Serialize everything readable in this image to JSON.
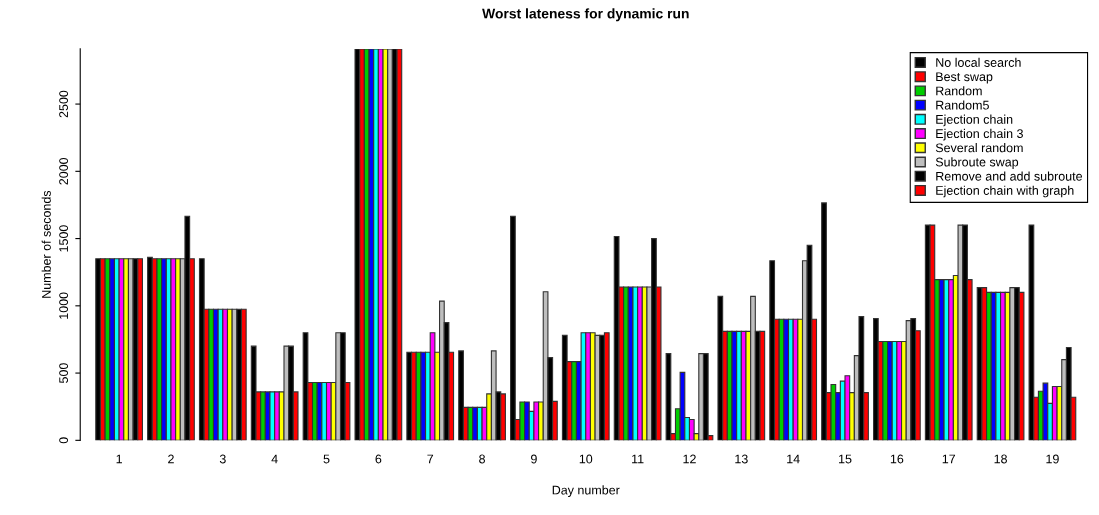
{
  "chart_data": {
    "type": "bar",
    "title": "Worst lateness for dynamic run",
    "xlabel": "Day number",
    "ylabel": "Number of seconds",
    "categories": [
      "1",
      "2",
      "3",
      "4",
      "5",
      "6",
      "7",
      "8",
      "9",
      "10",
      "11",
      "12",
      "13",
      "14",
      "15",
      "16",
      "17",
      "18",
      "19"
    ],
    "series": [
      {
        "name": "No local search",
        "color": "#000000",
        "values": [
          1350,
          1360,
          1350,
          700,
          800,
          2910,
          655,
          665,
          1665,
          780,
          1515,
          645,
          1070,
          1335,
          1765,
          905,
          1600,
          1135,
          1600
        ]
      },
      {
        "name": "Best swap",
        "color": "#ff0000",
        "values": [
          1350,
          1350,
          975,
          360,
          430,
          2910,
          655,
          245,
          155,
          585,
          1140,
          50,
          810,
          900,
          355,
          735,
          1600,
          1135,
          320
        ]
      },
      {
        "name": "Random",
        "color": "#00cd00",
        "values": [
          1350,
          1350,
          975,
          360,
          430,
          2910,
          655,
          245,
          285,
          585,
          1140,
          235,
          810,
          900,
          415,
          735,
          1195,
          1100,
          365
        ]
      },
      {
        "name": "Random5",
        "color": "#0000ff",
        "values": [
          1350,
          1350,
          975,
          360,
          430,
          2910,
          655,
          245,
          285,
          585,
          1140,
          505,
          810,
          900,
          355,
          735,
          1195,
          1100,
          425
        ]
      },
      {
        "name": "Ejection chain",
        "color": "#00ffff",
        "values": [
          1350,
          1350,
          975,
          360,
          430,
          2910,
          655,
          245,
          215,
          800,
          1140,
          170,
          810,
          900,
          440,
          735,
          1195,
          1100,
          275
        ]
      },
      {
        "name": "Ejection chain 3",
        "color": "#ff00ff",
        "values": [
          1350,
          1350,
          975,
          360,
          430,
          2910,
          800,
          245,
          285,
          800,
          1140,
          155,
          810,
          900,
          480,
          735,
          1195,
          1100,
          400
        ]
      },
      {
        "name": "Several random",
        "color": "#ffff00",
        "values": [
          1350,
          1350,
          975,
          360,
          430,
          2910,
          655,
          345,
          285,
          800,
          1140,
          50,
          810,
          900,
          355,
          735,
          1225,
          1100,
          400
        ]
      },
      {
        "name": "Subroute swap",
        "color": "#bebebe",
        "values": [
          1350,
          1350,
          975,
          700,
          800,
          2910,
          1035,
          665,
          1105,
          780,
          1140,
          645,
          1070,
          1335,
          630,
          890,
          1600,
          1135,
          600
        ]
      },
      {
        "name": "Remove and add subroute",
        "color": "#000000",
        "values": [
          1350,
          1665,
          975,
          700,
          800,
          2910,
          875,
          360,
          615,
          780,
          1500,
          645,
          810,
          1450,
          920,
          905,
          1600,
          1135,
          690
        ]
      },
      {
        "name": "Ejection chain with graph",
        "color": "#ff0000",
        "values": [
          1350,
          1350,
          975,
          360,
          430,
          2910,
          655,
          345,
          290,
          800,
          1140,
          35,
          810,
          900,
          355,
          815,
          1195,
          1100,
          320
        ]
      }
    ],
    "ylim": [
      0,
      2910
    ],
    "yticks": [
      0,
      500,
      1000,
      1500,
      2000,
      2500
    ],
    "grid": false,
    "legend": "top right"
  }
}
